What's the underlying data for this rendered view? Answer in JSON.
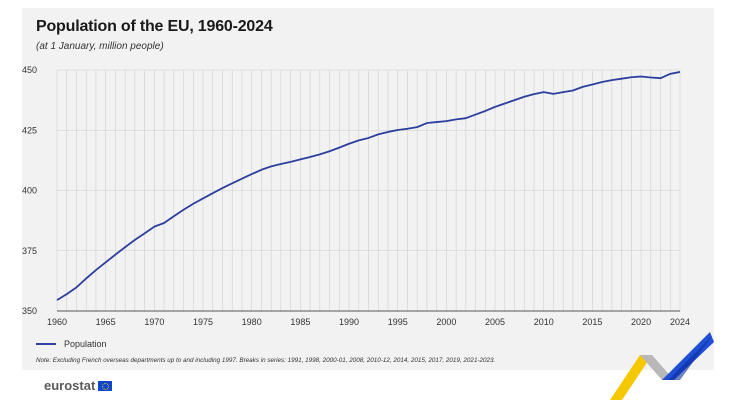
{
  "header": {
    "title": "Population of the EU, 1960-2024",
    "subtitle": "(at 1 January, million people)"
  },
  "legend": {
    "label": "Population"
  },
  "note": "Note: Excluding French overseas departments up to and including 1997. Breaks in series: 1991, 1998, 2000-01, 2008, 2010-12, 2014, 2015, 2017, 2019, 2021-2023.",
  "brand": {
    "name": "eurostat"
  },
  "colors": {
    "line": "#2b3f9e",
    "grid": "#cfcfcf",
    "panel": "#f2f2f2"
  },
  "chart_data": {
    "type": "line",
    "title": "Population of the EU, 1960-2024",
    "subtitle": "(at 1 January, million people)",
    "xlabel": "",
    "ylabel": "",
    "xlim": [
      1960,
      2024
    ],
    "ylim": [
      350,
      450
    ],
    "yticks": [
      350,
      375,
      400,
      425,
      450
    ],
    "xticks": [
      1960,
      1965,
      1970,
      1975,
      1980,
      1985,
      1990,
      1995,
      2000,
      2005,
      2010,
      2015,
      2020,
      2024
    ],
    "grid": true,
    "legend_position": "bottom-left",
    "series": [
      {
        "name": "Population",
        "x": [
          1960,
          1961,
          1962,
          1963,
          1964,
          1965,
          1966,
          1967,
          1968,
          1969,
          1970,
          1971,
          1972,
          1973,
          1974,
          1975,
          1976,
          1977,
          1978,
          1979,
          1980,
          1981,
          1982,
          1983,
          1984,
          1985,
          1986,
          1987,
          1988,
          1989,
          1990,
          1991,
          1992,
          1993,
          1994,
          1995,
          1996,
          1997,
          1998,
          1999,
          2000,
          2001,
          2002,
          2003,
          2004,
          2005,
          2006,
          2007,
          2008,
          2009,
          2010,
          2011,
          2012,
          2013,
          2014,
          2015,
          2016,
          2017,
          2018,
          2019,
          2020,
          2021,
          2022,
          2023,
          2024
        ],
        "values": [
          354.5,
          357.0,
          359.8,
          363.5,
          367.0,
          370.2,
          373.4,
          376.5,
          379.5,
          382.2,
          385.0,
          386.5,
          389.3,
          392.0,
          394.5,
          396.7,
          398.9,
          401.0,
          403.0,
          404.9,
          406.8,
          408.6,
          410.0,
          411.0,
          411.9,
          412.9,
          413.9,
          415.0,
          416.3,
          417.8,
          419.4,
          420.8,
          421.8,
          423.3,
          424.3,
          425.1,
          425.6,
          426.3,
          428.0,
          428.4,
          428.8,
          429.5,
          430.0,
          431.5,
          433.0,
          434.7,
          436.1,
          437.5,
          438.9,
          440.0,
          440.8,
          440.1,
          440.8,
          441.5,
          443.0,
          444.0,
          445.0,
          445.8,
          446.4,
          447.0,
          447.3,
          446.9,
          446.6,
          448.4,
          449.2
        ]
      }
    ]
  }
}
